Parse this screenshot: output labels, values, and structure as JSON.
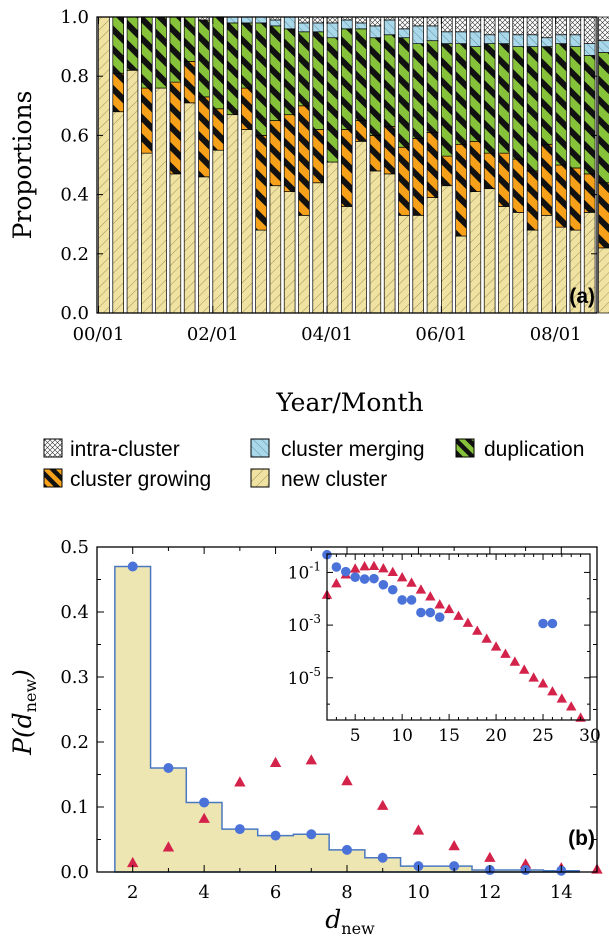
{
  "chart_data": [
    {
      "type": "bar",
      "stacked": true,
      "panel_label": "(a)",
      "xlabel": "Year/Month",
      "ylabel": "Proportions",
      "ylim": [
        0,
        1
      ],
      "yticks": [
        "0.0",
        "0.2",
        "0.4",
        "0.6",
        "0.8",
        "1.0"
      ],
      "xtick_labels": [
        "00/01",
        "02/01",
        "04/01",
        "06/01",
        "08/01"
      ],
      "xtick_months": [
        0,
        24,
        48,
        72,
        96
      ],
      "month_count": 105,
      "bar_step_months": 3,
      "legend": {
        "placement": "below-plot",
        "entries": [
          {
            "key": "intra",
            "label": "intra-cluster"
          },
          {
            "key": "merging",
            "label": "cluster merging"
          },
          {
            "key": "duplication",
            "label": "duplication"
          },
          {
            "key": "growing",
            "label": "cluster growing"
          },
          {
            "key": "new",
            "label": "new cluster"
          }
        ]
      },
      "series": [
        {
          "key": "new",
          "name": "new cluster",
          "color": "#f0e2a0",
          "pattern": "hatch-light",
          "values": [
            1.0,
            0.68,
            0.82,
            0.54,
            0.76,
            0.47,
            0.71,
            0.46,
            0.55,
            0.67,
            0.62,
            0.28,
            0.43,
            0.41,
            0.33,
            0.44,
            0.51,
            0.36,
            0.58,
            0.48,
            0.47,
            0.33,
            0.33,
            0.39,
            0.43,
            0.26,
            0.41,
            0.42,
            0.36,
            0.34,
            0.28,
            0.33,
            0.29,
            0.28,
            0.34,
            0.22
          ]
        },
        {
          "key": "growing",
          "name": "cluster growing",
          "color": "#f7a11a",
          "pattern": "stripe",
          "values": [
            0.0,
            0.13,
            0.0,
            0.22,
            0.0,
            0.31,
            0.14,
            0.27,
            0.14,
            0.0,
            0.14,
            0.32,
            0.22,
            0.26,
            0.37,
            0.18,
            0.0,
            0.26,
            0.07,
            0.12,
            0.16,
            0.23,
            0.26,
            0.22,
            0.1,
            0.31,
            0.17,
            0.12,
            0.18,
            0.18,
            0.2,
            0.24,
            0.21,
            0.21,
            0.13,
            0.22
          ]
        },
        {
          "key": "duplication",
          "name": "duplication",
          "color": "#86c23a",
          "pattern": "stripe",
          "values": [
            0.0,
            0.19,
            0.18,
            0.24,
            0.24,
            0.22,
            0.15,
            0.26,
            0.31,
            0.31,
            0.22,
            0.38,
            0.32,
            0.29,
            0.25,
            0.33,
            0.42,
            0.34,
            0.31,
            0.33,
            0.31,
            0.37,
            0.32,
            0.31,
            0.38,
            0.34,
            0.32,
            0.37,
            0.37,
            0.38,
            0.42,
            0.33,
            0.41,
            0.41,
            0.4,
            0.44
          ]
        },
        {
          "key": "merging",
          "name": "cluster merging",
          "color": "#a9d8ea",
          "pattern": "hatch-light",
          "values": [
            0.0,
            0.0,
            0.0,
            0.0,
            0.0,
            0.0,
            0.0,
            0.0,
            0.0,
            0.02,
            0.02,
            0.02,
            0.02,
            0.04,
            0.03,
            0.03,
            0.05,
            0.03,
            0.02,
            0.04,
            0.05,
            0.03,
            0.06,
            0.05,
            0.04,
            0.04,
            0.05,
            0.03,
            0.04,
            0.04,
            0.04,
            0.03,
            0.03,
            0.04,
            0.04,
            0.04
          ]
        },
        {
          "key": "intra",
          "name": "intra-cluster",
          "color": "#ffffff",
          "pattern": "crosshatch",
          "values": [
            0.0,
            0.0,
            0.0,
            0.0,
            0.0,
            0.0,
            0.0,
            0.01,
            0.0,
            0.0,
            0.0,
            0.0,
            0.01,
            0.0,
            0.02,
            0.02,
            0.02,
            0.01,
            0.02,
            0.03,
            0.01,
            0.04,
            0.03,
            0.03,
            0.05,
            0.05,
            0.05,
            0.06,
            0.05,
            0.06,
            0.06,
            0.07,
            0.06,
            0.06,
            0.09,
            0.08
          ]
        }
      ]
    },
    {
      "type": "step+scatter",
      "panel_label": "(b)",
      "xlabel_main": "d",
      "xlabel_sub": "new",
      "ylabel_main": "P(d",
      "ylabel_sub": "new",
      "ylabel_close": ")",
      "xlim": [
        1,
        15
      ],
      "ylim": [
        0,
        0.5
      ],
      "xticks": [
        "2",
        "4",
        "6",
        "8",
        "10",
        "12",
        "14"
      ],
      "yticks": [
        "0.0",
        "0.1",
        "0.2",
        "0.3",
        "0.4",
        "0.5"
      ],
      "histogram": {
        "color": "#ede6b2",
        "edge_color": "#4a78c0",
        "x": [
          2,
          3,
          4,
          5,
          6,
          7,
          8,
          9,
          10,
          11,
          12,
          13,
          14
        ],
        "values": [
          0.47,
          0.16,
          0.107,
          0.066,
          0.056,
          0.058,
          0.034,
          0.022,
          0.009,
          0.009,
          0.003,
          0.003,
          0.002
        ]
      },
      "circles": {
        "color": "#4a72d9",
        "x": [
          2,
          3,
          4,
          5,
          6,
          7,
          8,
          9,
          10,
          11,
          12,
          13,
          14
        ],
        "values": [
          0.47,
          0.16,
          0.107,
          0.066,
          0.056,
          0.058,
          0.034,
          0.022,
          0.009,
          0.009,
          0.003,
          0.003,
          0.002
        ]
      },
      "triangles": {
        "color": "#d4234a",
        "x": [
          2,
          3,
          4,
          5,
          6,
          7,
          8,
          9,
          10,
          11,
          12,
          13,
          14,
          15
        ],
        "values": [
          0.014,
          0.038,
          0.082,
          0.138,
          0.168,
          0.172,
          0.14,
          0.102,
          0.064,
          0.04,
          0.022,
          0.012,
          0.006,
          0.004
        ]
      },
      "inset": {
        "yscale": "log",
        "xlim": [
          2,
          30
        ],
        "ylim": [
          2.5e-07,
          0.5
        ],
        "xticks": [
          "5",
          "10",
          "15",
          "20",
          "25",
          "30"
        ],
        "ytick_base": "10",
        "ytick_exps": [
          "-1",
          "-3",
          "-5"
        ],
        "circles": {
          "x": [
            2,
            3,
            4,
            5,
            6,
            7,
            8,
            9,
            10,
            11,
            12,
            13,
            14,
            25,
            26
          ],
          "values": [
            0.47,
            0.16,
            0.107,
            0.066,
            0.056,
            0.058,
            0.034,
            0.022,
            0.009,
            0.009,
            0.003,
            0.003,
            0.002,
            0.00115,
            0.00115
          ]
        },
        "triangles": {
          "x": [
            2,
            3,
            4,
            5,
            6,
            7,
            8,
            9,
            10,
            11,
            12,
            13,
            14,
            15,
            16,
            17,
            18,
            19,
            20,
            21,
            22,
            23,
            24,
            25,
            26,
            27,
            28,
            29
          ],
          "values": [
            0.014,
            0.038,
            0.082,
            0.138,
            0.168,
            0.172,
            0.14,
            0.102,
            0.064,
            0.04,
            0.022,
            0.012,
            0.006,
            0.004,
            0.0022,
            0.0012,
            0.0006,
            0.0003,
            0.00015,
            8e-05,
            4e-05,
            2e-05,
            1e-05,
            6e-06,
            3e-06,
            1.6e-06,
            8e-07,
            3e-07
          ]
        }
      }
    }
  ]
}
